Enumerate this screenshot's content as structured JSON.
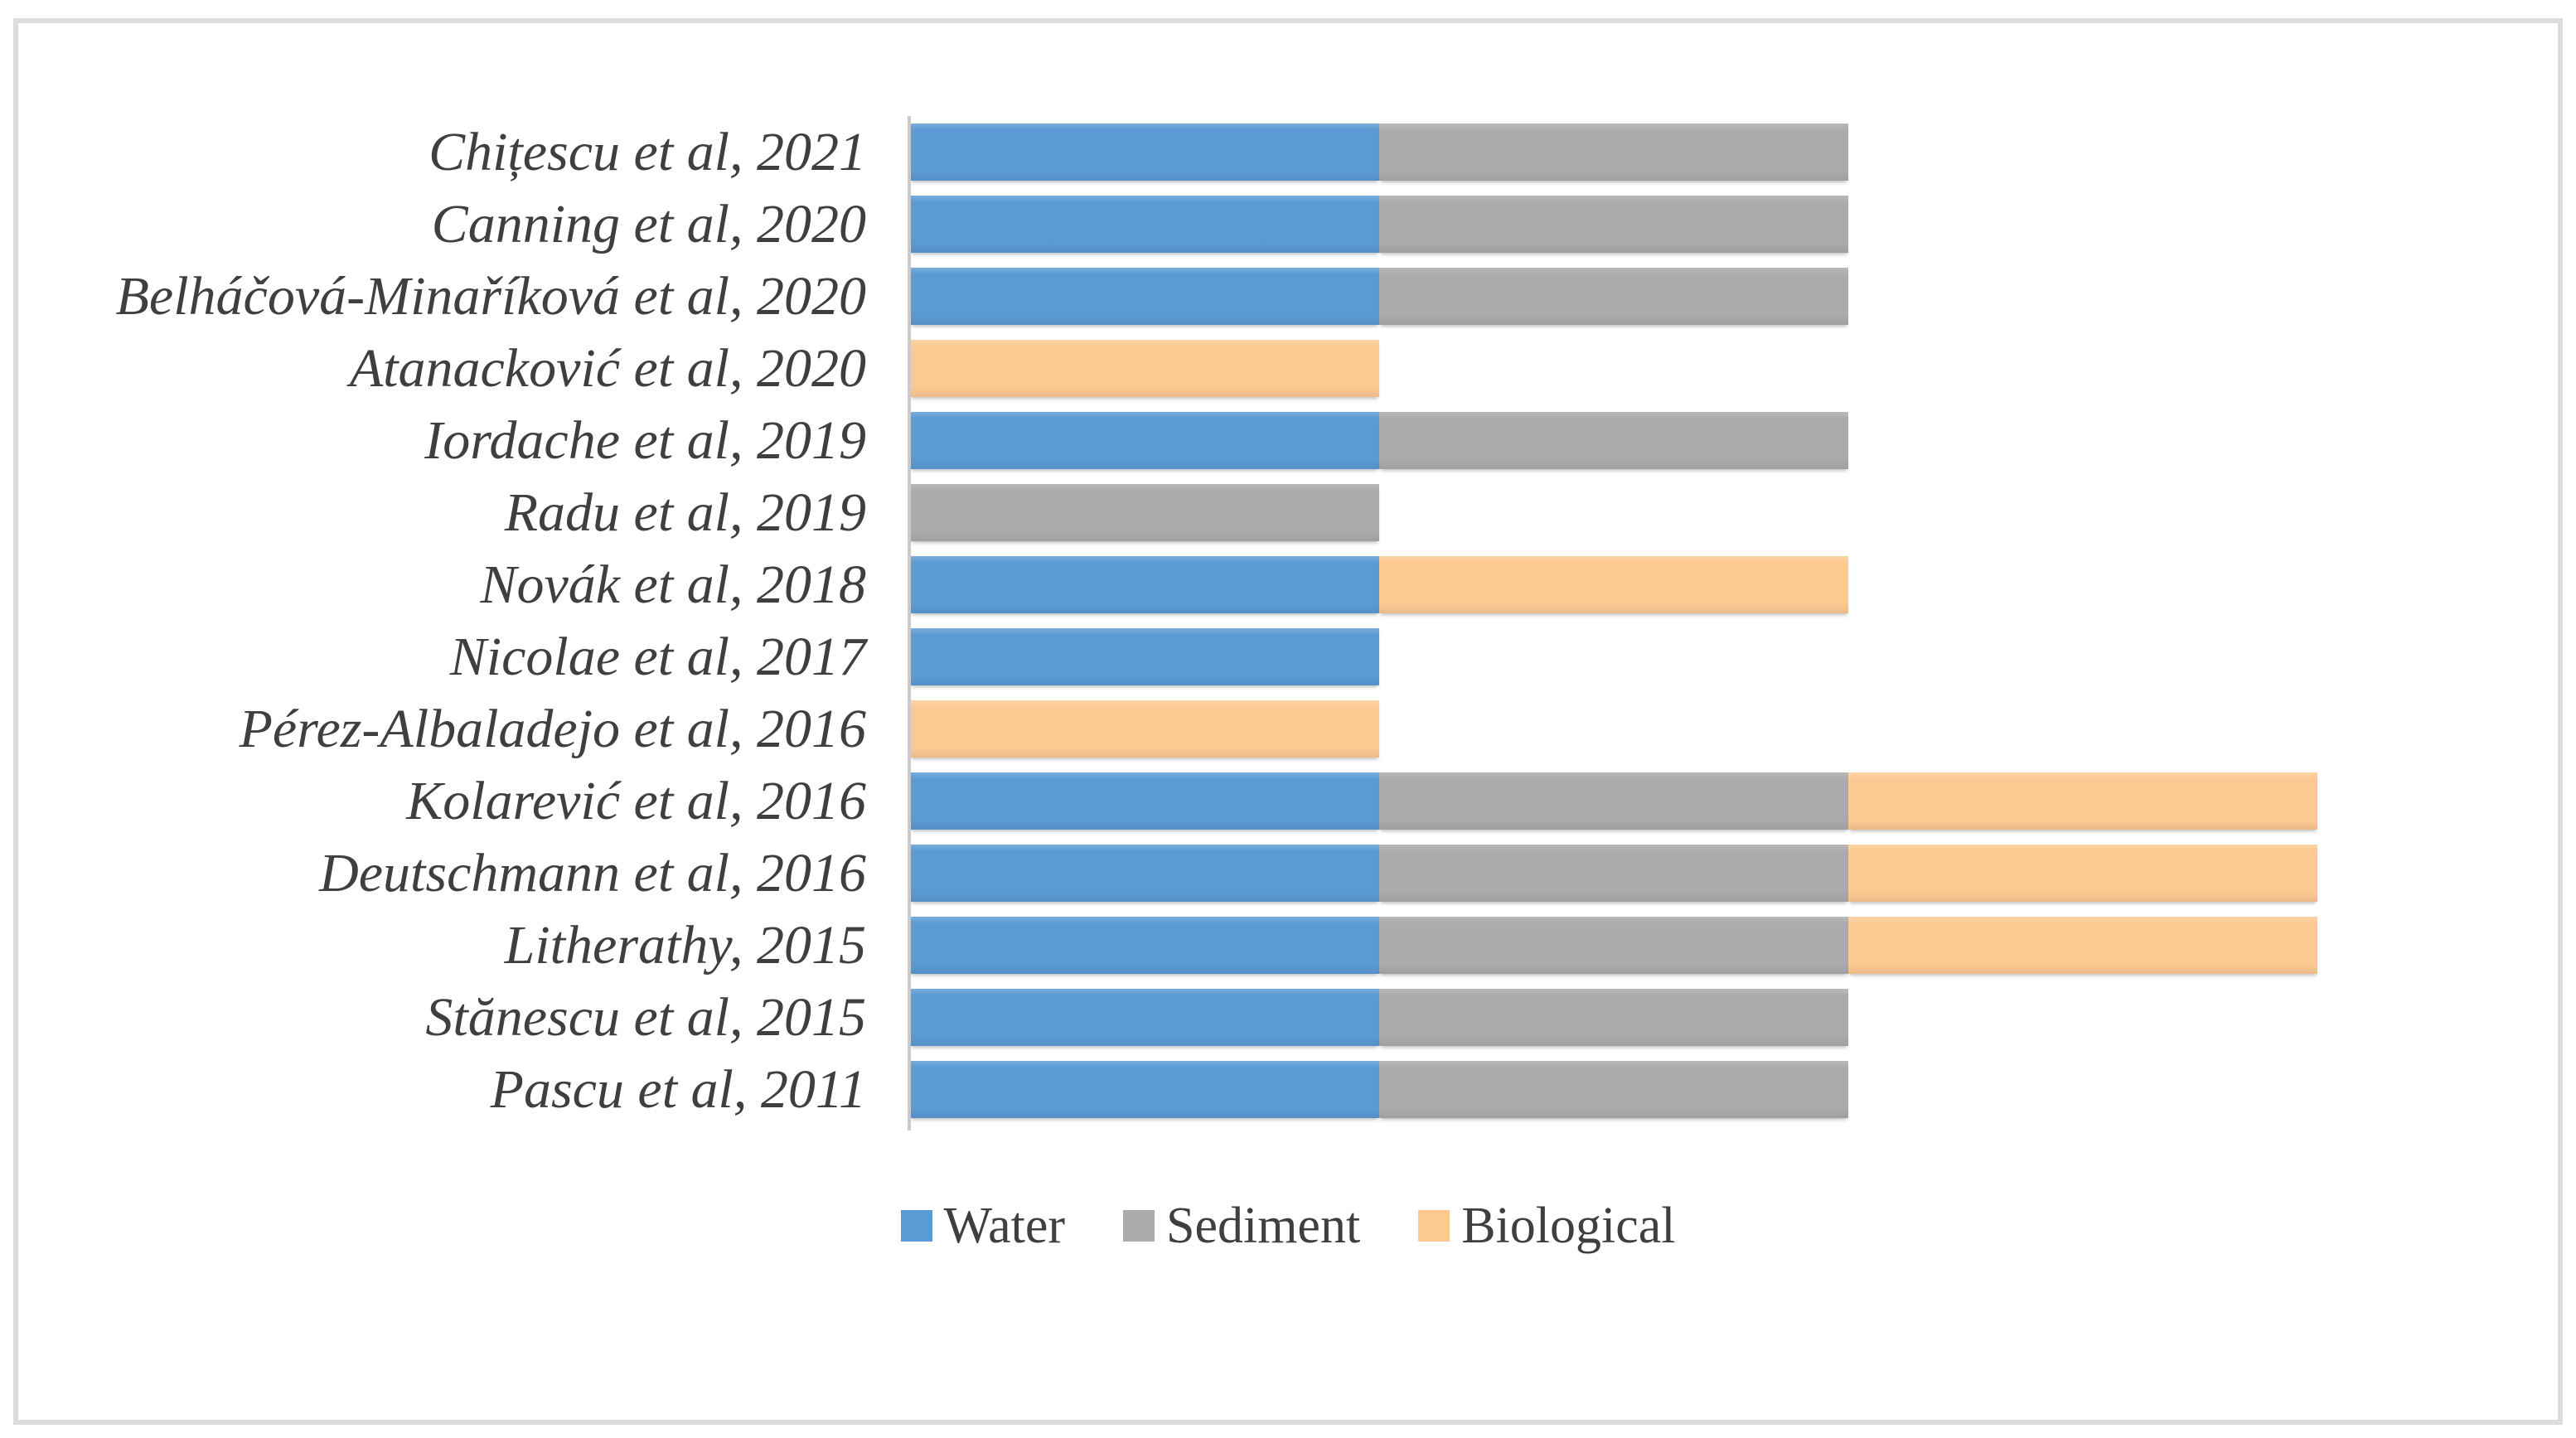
{
  "figure": {
    "background_color": "#FFFFFF",
    "border_color": "#DCDCDC",
    "axis_color": "#CBC9C9",
    "text_color": "#3F3F3F"
  },
  "chart_data": {
    "type": "bar",
    "orientation": "horizontal",
    "stacked": true,
    "title": "",
    "xlabel": "",
    "ylabel": "",
    "xlim": [
      0,
      3.5
    ],
    "grid": false,
    "legend_position": "bottom",
    "categories": [
      "Chițescu et al, 2021",
      "Canning et al, 2020",
      "Belháčová-Minaříková et al, 2020",
      "Atanacković et al, 2020",
      "Iordache et al, 2019",
      "Radu et al, 2019",
      "Novák et al, 2018",
      "Nicolae et al, 2017",
      "Pérez-Albaladejo et al, 2016",
      "Kolarević et al, 2016",
      "Deutschmann et al, 2016",
      "Litherathy, 2015",
      "Stănescu et al, 2015",
      "Pascu et al, 2011"
    ],
    "series": [
      {
        "name": "Water",
        "color": "#5B9BD5",
        "values": [
          1,
          1,
          1,
          0,
          1,
          0,
          1,
          1,
          0,
          1,
          1,
          1,
          1,
          1
        ]
      },
      {
        "name": "Sediment",
        "color": "#ADAAAA",
        "values": [
          1,
          1,
          1,
          0,
          1,
          1,
          0,
          0,
          0,
          1,
          1,
          1,
          1,
          1
        ]
      },
      {
        "name": "Biological",
        "color": "#FDC992",
        "values": [
          0,
          0,
          0,
          1,
          0,
          0,
          1,
          0,
          1,
          1,
          1,
          1,
          0,
          0
        ]
      }
    ]
  }
}
